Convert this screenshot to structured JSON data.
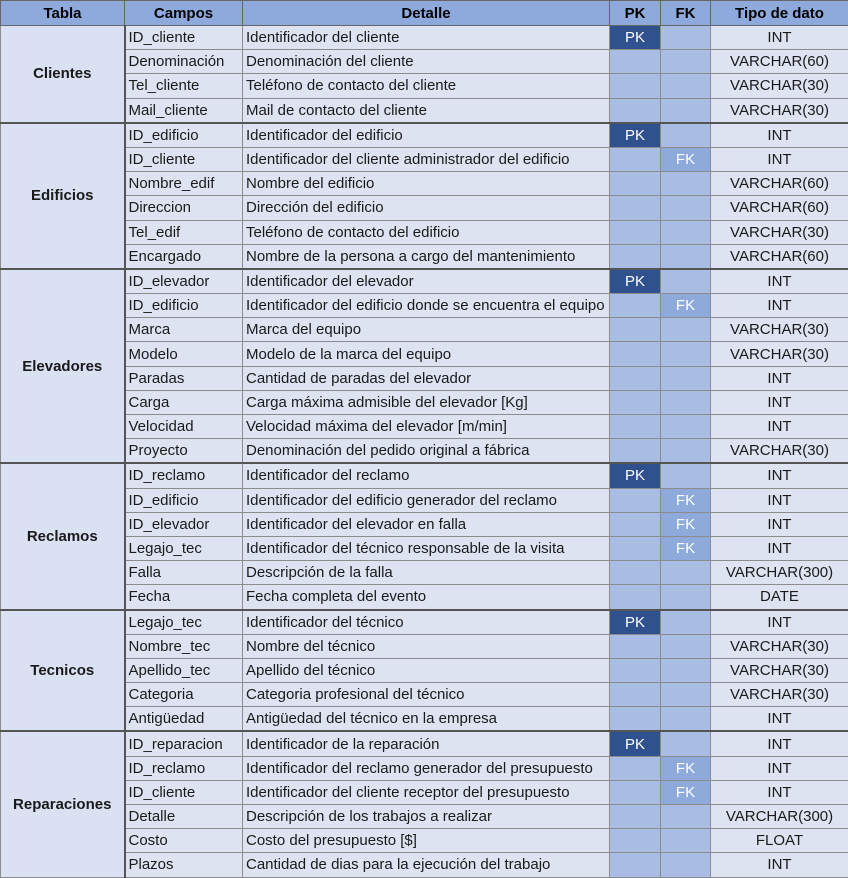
{
  "headers": {
    "tabla": "Tabla",
    "campos": "Campos",
    "detalle": "Detalle",
    "pk": "PK",
    "fk": "FK",
    "tipo": "Tipo de dato"
  },
  "groups": [
    {
      "name": "Clientes",
      "rows": [
        {
          "campo": "ID_cliente",
          "detalle": "Identificador del cliente",
          "pk": "PK",
          "fk": "",
          "tipo": "INT"
        },
        {
          "campo": "Denominación",
          "detalle": "Denominación del cliente",
          "pk": "",
          "fk": "",
          "tipo": "VARCHAR(60)"
        },
        {
          "campo": "Tel_cliente",
          "detalle": "Teléfono de contacto del cliente",
          "pk": "",
          "fk": "",
          "tipo": "VARCHAR(30)"
        },
        {
          "campo": "Mail_cliente",
          "detalle": "Mail de contacto del cliente",
          "pk": "",
          "fk": "",
          "tipo": "VARCHAR(30)"
        }
      ]
    },
    {
      "name": "Edificios",
      "rows": [
        {
          "campo": "ID_edificio",
          "detalle": "Identificador del edificio",
          "pk": "PK",
          "fk": "",
          "tipo": "INT"
        },
        {
          "campo": "ID_cliente",
          "detalle": "Identificador del cliente administrador del edificio",
          "pk": "",
          "fk": "FK",
          "tipo": "INT"
        },
        {
          "campo": "Nombre_edif",
          "detalle": "Nombre del edificio",
          "pk": "",
          "fk": "",
          "tipo": "VARCHAR(60)"
        },
        {
          "campo": "Direccion",
          "detalle": "Dirección del edificio",
          "pk": "",
          "fk": "",
          "tipo": "VARCHAR(60)"
        },
        {
          "campo": "Tel_edif",
          "detalle": "Teléfono de contacto del edificio",
          "pk": "",
          "fk": "",
          "tipo": "VARCHAR(30)"
        },
        {
          "campo": "Encargado",
          "detalle": "Nombre de la persona a cargo del mantenimiento",
          "pk": "",
          "fk": "",
          "tipo": "VARCHAR(60)"
        }
      ]
    },
    {
      "name": "Elevadores",
      "rows": [
        {
          "campo": "ID_elevador",
          "detalle": "Identificador del elevador",
          "pk": "PK",
          "fk": "",
          "tipo": "INT"
        },
        {
          "campo": "ID_edificio",
          "detalle": "Identificador del edificio donde se encuentra el equipo",
          "pk": "",
          "fk": "FK",
          "tipo": "INT"
        },
        {
          "campo": "Marca",
          "detalle": "Marca del equipo",
          "pk": "",
          "fk": "",
          "tipo": "VARCHAR(30)"
        },
        {
          "campo": "Modelo",
          "detalle": "Modelo de la marca del equipo",
          "pk": "",
          "fk": "",
          "tipo": "VARCHAR(30)"
        },
        {
          "campo": "Paradas",
          "detalle": "Cantidad de paradas del elevador",
          "pk": "",
          "fk": "",
          "tipo": "INT"
        },
        {
          "campo": "Carga",
          "detalle": "Carga máxima admisible del elevador [Kg]",
          "pk": "",
          "fk": "",
          "tipo": "INT"
        },
        {
          "campo": "Velocidad",
          "detalle": "Velocidad máxima del elevador [m/min]",
          "pk": "",
          "fk": "",
          "tipo": "INT"
        },
        {
          "campo": "Proyecto",
          "detalle": "Denominación del pedido original a fábrica",
          "pk": "",
          "fk": "",
          "tipo": "VARCHAR(30)"
        }
      ]
    },
    {
      "name": "Reclamos",
      "rows": [
        {
          "campo": "ID_reclamo",
          "detalle": "Identificador del reclamo",
          "pk": "PK",
          "fk": "",
          "tipo": "INT"
        },
        {
          "campo": "ID_edificio",
          "detalle": "Identificador del edificio generador del reclamo",
          "pk": "",
          "fk": "FK",
          "tipo": "INT"
        },
        {
          "campo": "ID_elevador",
          "detalle": "Identificador del elevador en falla",
          "pk": "",
          "fk": "FK",
          "tipo": "INT"
        },
        {
          "campo": "Legajo_tec",
          "detalle": "Identificador del técnico responsable de la visita",
          "pk": "",
          "fk": "FK",
          "tipo": "INT"
        },
        {
          "campo": "Falla",
          "detalle": "Descripción de la falla",
          "pk": "",
          "fk": "",
          "tipo": "VARCHAR(300)"
        },
        {
          "campo": "Fecha",
          "detalle": "Fecha completa del evento",
          "pk": "",
          "fk": "",
          "tipo": "DATE"
        }
      ]
    },
    {
      "name": "Tecnicos",
      "rows": [
        {
          "campo": "Legajo_tec",
          "detalle": "Identificador del técnico",
          "pk": "PK",
          "fk": "",
          "tipo": "INT"
        },
        {
          "campo": "Nombre_tec",
          "detalle": "Nombre del técnico",
          "pk": "",
          "fk": "",
          "tipo": "VARCHAR(30)"
        },
        {
          "campo": "Apellido_tec",
          "detalle": "Apellido del técnico",
          "pk": "",
          "fk": "",
          "tipo": "VARCHAR(30)"
        },
        {
          "campo": "Categoria",
          "detalle": "Categoria profesional del técnico",
          "pk": "",
          "fk": "",
          "tipo": "VARCHAR(30)"
        },
        {
          "campo": "Antigüedad",
          "detalle": "Antigüedad del técnico en la empresa",
          "pk": "",
          "fk": "",
          "tipo": "INT"
        }
      ]
    },
    {
      "name": "Reparaciones",
      "rows": [
        {
          "campo": "ID_reparacion",
          "detalle": "Identificador de la reparación",
          "pk": "PK",
          "fk": "",
          "tipo": "INT"
        },
        {
          "campo": "ID_reclamo",
          "detalle": "Identificador del reclamo generador del presupuesto",
          "pk": "",
          "fk": "FK",
          "tipo": "INT"
        },
        {
          "campo": "ID_cliente",
          "detalle": "Identificador del cliente receptor del presupuesto",
          "pk": "",
          "fk": "FK",
          "tipo": "INT"
        },
        {
          "campo": "Detalle",
          "detalle": "Descripción de los trabajos a realizar",
          "pk": "",
          "fk": "",
          "tipo": "VARCHAR(300)"
        },
        {
          "campo": "Costo",
          "detalle": "Costo del presupuesto [$]",
          "pk": "",
          "fk": "",
          "tipo": "FLOAT"
        },
        {
          "campo": "Plazos",
          "detalle": "Cantidad de dias para la ejecución del trabajo",
          "pk": "",
          "fk": "",
          "tipo": "INT"
        }
      ]
    }
  ]
}
